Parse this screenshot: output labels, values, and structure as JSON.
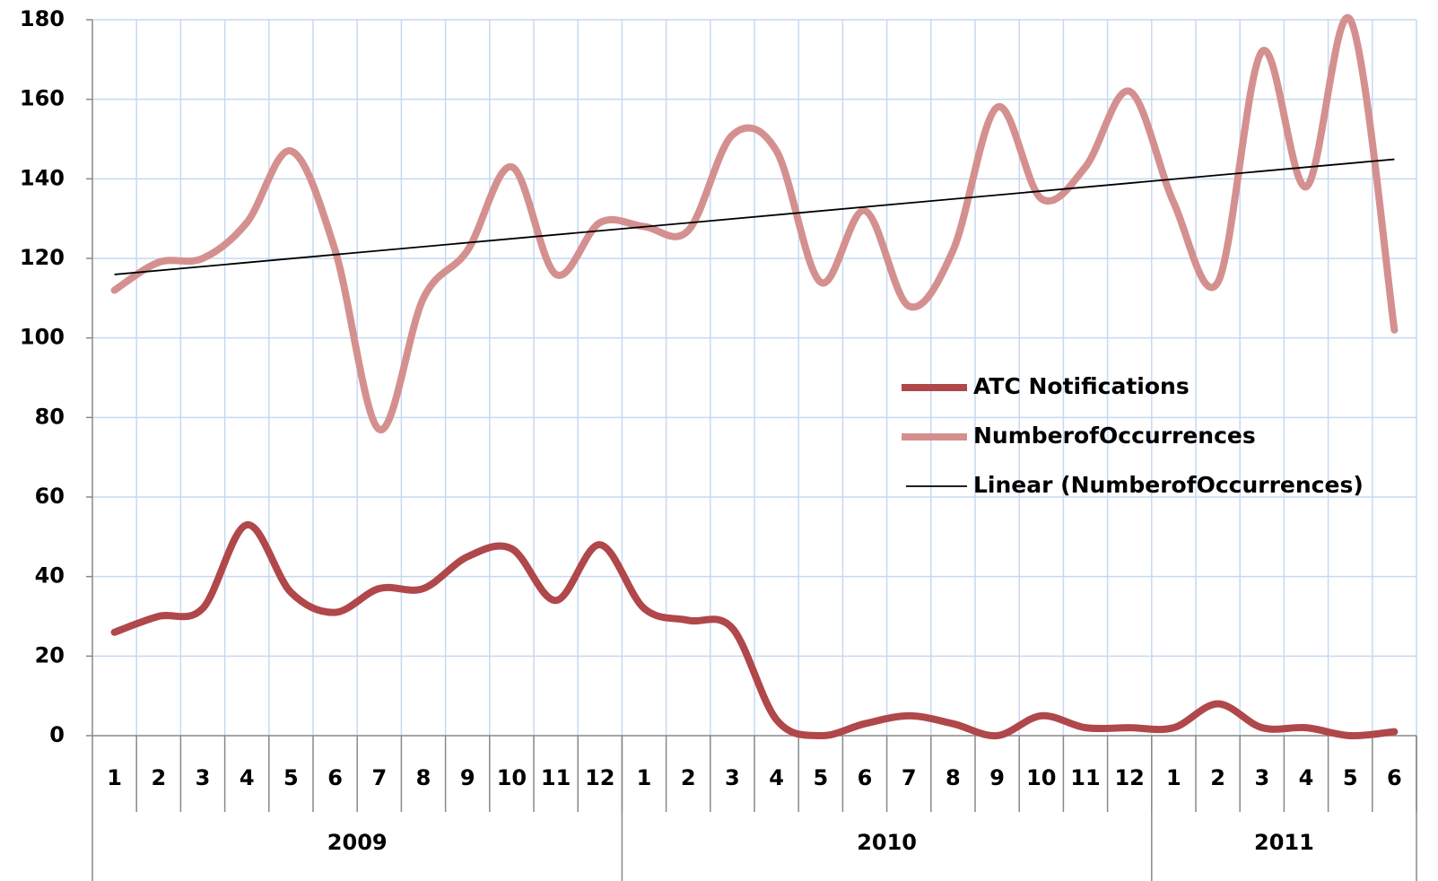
{
  "chart_data": {
    "type": "line",
    "categories": [
      "1",
      "2",
      "3",
      "4",
      "5",
      "6",
      "7",
      "8",
      "9",
      "10",
      "11",
      "12",
      "1",
      "2",
      "3",
      "4",
      "5",
      "6",
      "7",
      "8",
      "9",
      "10",
      "11",
      "12",
      "1",
      "2",
      "3",
      "4",
      "5",
      "6"
    ],
    "category_groups": [
      {
        "label": "2009",
        "count": 12
      },
      {
        "label": "2010",
        "count": 12
      },
      {
        "label": "2011",
        "count": 6
      }
    ],
    "series": [
      {
        "name": "ATC Notifications",
        "color": "#b0474a",
        "values": [
          26,
          30,
          32,
          53,
          36,
          31,
          37,
          37,
          45,
          47,
          34,
          48,
          32,
          29,
          27,
          4,
          0,
          3,
          5,
          3,
          0,
          5,
          2,
          2,
          2,
          8,
          2,
          2,
          0,
          1
        ]
      },
      {
        "name": "NumberofOccurrences",
        "color": "#d4908f",
        "values": [
          112,
          119,
          120,
          129,
          147,
          122,
          77,
          110,
          122,
          143,
          116,
          129,
          128,
          127,
          151,
          147,
          114,
          132,
          108,
          122,
          158,
          135,
          143,
          162,
          134,
          114,
          172,
          138,
          180,
          102
        ]
      }
    ],
    "trendline": {
      "name": "Linear (NumberofOccurrences)",
      "color": "#000000",
      "of_series": 1
    },
    "ylim": [
      0,
      180
    ],
    "yticks": [
      0,
      20,
      40,
      60,
      80,
      100,
      120,
      140,
      160,
      180
    ],
    "grid": true
  }
}
